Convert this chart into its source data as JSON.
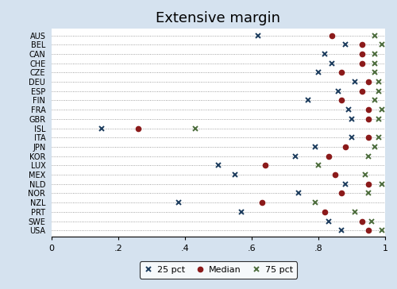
{
  "title": "Extensive margin",
  "countries": [
    "AUS",
    "BEL",
    "CAN",
    "CHE",
    "CZE",
    "DEU",
    "ESP",
    "FIN",
    "FRA",
    "GBR",
    "ISL",
    "ITA",
    "JPN",
    "KOR",
    "LUX",
    "MEX",
    "NLD",
    "NOR",
    "NZL",
    "PRT",
    "SWE",
    "USA"
  ],
  "pct25": [
    0.62,
    0.88,
    0.82,
    0.84,
    0.8,
    0.91,
    0.86,
    0.77,
    0.89,
    0.9,
    0.15,
    0.9,
    0.79,
    0.73,
    0.5,
    0.55,
    0.88,
    0.74,
    0.38,
    0.57,
    0.83,
    0.87
  ],
  "median": [
    0.84,
    0.93,
    0.93,
    0.93,
    0.87,
    0.95,
    0.93,
    0.87,
    0.95,
    0.95,
    0.26,
    0.95,
    0.88,
    0.83,
    0.64,
    0.85,
    0.95,
    0.87,
    0.63,
    0.82,
    0.93,
    0.95
  ],
  "pct75": [
    0.97,
    0.99,
    0.97,
    0.97,
    0.97,
    0.98,
    0.98,
    0.97,
    0.99,
    0.98,
    0.43,
    0.98,
    0.97,
    0.95,
    0.8,
    0.94,
    0.99,
    0.95,
    0.79,
    0.91,
    0.96,
    0.99
  ],
  "color_25pct": "#1a3a5c",
  "color_median": "#8b1a1a",
  "color_75pct": "#4a6b3a",
  "xlim": [
    0,
    1.0
  ],
  "xticks": [
    0,
    0.2,
    0.4,
    0.6,
    0.8,
    1.0
  ],
  "xticklabels": [
    "0",
    ".2",
    ".4",
    ".6",
    ".8",
    "1"
  ],
  "background_color": "#d5e2ef",
  "plot_bg_color": "#ffffff",
  "title_fontsize": 13,
  "label_fontsize": 7,
  "tick_fontsize": 8
}
